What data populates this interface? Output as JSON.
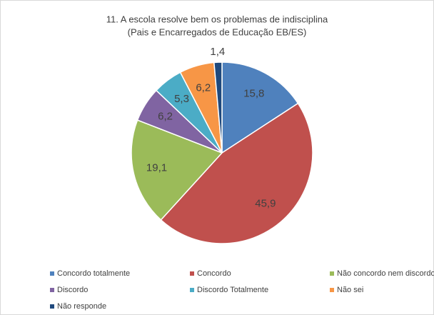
{
  "chart_data": {
    "type": "pie",
    "title": "11. A escola resolve bem os problemas de indisciplina",
    "subtitle": "(Pais e Encarregados de Educação EB/ES)",
    "categories": [
      "Concordo totalmente",
      "Concordo",
      "Não concordo nem discordo",
      "Discordo",
      "Discordo Totalmente",
      "Não sei",
      "Não responde"
    ],
    "values": [
      15.8,
      45.9,
      19.1,
      6.2,
      5.3,
      6.2,
      1.4
    ],
    "value_labels": [
      "15,8",
      "45,9",
      "19,1",
      "6,2",
      "5,3",
      "6,2",
      "1,4"
    ],
    "colors": [
      "#4f81bd",
      "#c0504d",
      "#9bbb59",
      "#8064a2",
      "#4bacc6",
      "#f79646",
      "#1f497d"
    ],
    "legend": "bottom"
  }
}
